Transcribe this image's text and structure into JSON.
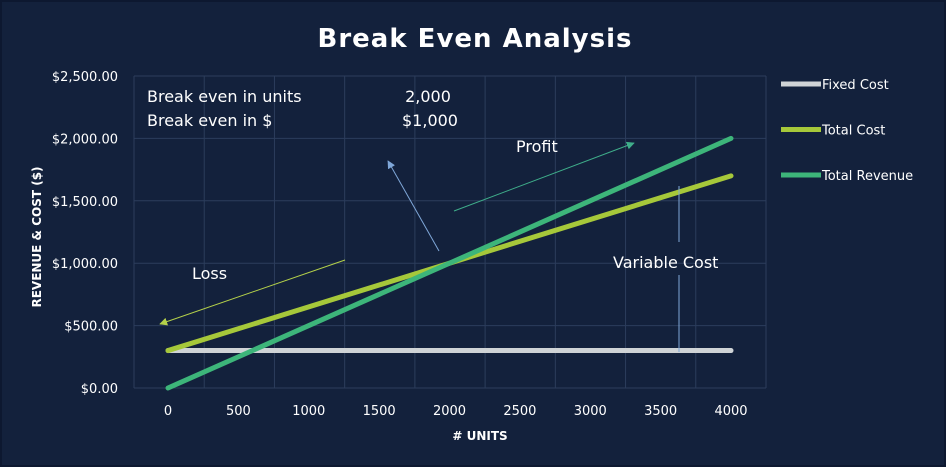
{
  "chart_data": {
    "type": "line",
    "title": "Break Even Analysis",
    "xlabel": "# UNITS",
    "ylabel": "REVENUE & COST  ($)",
    "xlim": [
      0,
      4000
    ],
    "ylim": [
      0,
      2500
    ],
    "x_ticks": [
      0,
      500,
      1000,
      1500,
      2000,
      2500,
      3000,
      3500,
      4000
    ],
    "x_tick_labels": [
      "0",
      "500",
      "1000",
      "1500",
      "2000",
      "2500",
      "3000",
      "3500",
      "4000"
    ],
    "y_ticks": [
      0,
      500,
      1000,
      1500,
      2000,
      2500
    ],
    "y_tick_labels": [
      "$0.00",
      "$500.00",
      "$1,000.00",
      "$1,500.00",
      "$2,000.00",
      "$2,500.00"
    ],
    "grid": true,
    "legend_position": "right",
    "x": [
      0,
      4000
    ],
    "series": [
      {
        "name": "Fixed Cost",
        "values": [
          300,
          300
        ],
        "color": "#cfd3d6"
      },
      {
        "name": "Total Cost",
        "values": [
          300,
          1700
        ],
        "color": "#a6c83a"
      },
      {
        "name": "Total Revenue",
        "values": [
          0,
          2000
        ],
        "color": "#3db57a"
      }
    ],
    "info_box": {
      "units_label": "Break even in units",
      "units_value": "2,000",
      "dollars_label": "Break even in $",
      "dollars_value": "$1,000"
    },
    "annotations": {
      "profit": "Profit",
      "loss": "Loss",
      "variable_cost": "Variable Cost"
    }
  },
  "colors": {
    "background": "#13213c",
    "plot_background": "#13213c",
    "gridline": "#2c3d5c",
    "arrow": "#3fae8a",
    "loss_arrow": "#b5d24a",
    "variable_arrow": "#7fa7d8"
  }
}
